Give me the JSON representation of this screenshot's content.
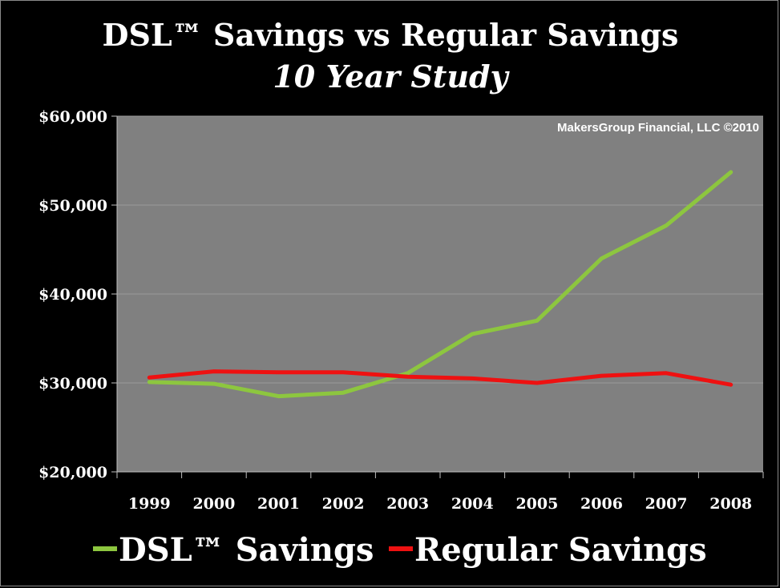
{
  "chart_data": {
    "type": "line",
    "title": "DSL™ Savings vs Regular Savings",
    "subtitle": "10 Year Study",
    "annotation": "MakersGroup Financial, LLC ©2010",
    "categories": [
      "1999",
      "2000",
      "2001",
      "2002",
      "2003",
      "2004",
      "2005",
      "2006",
      "2007",
      "2008"
    ],
    "series": [
      {
        "name": "DSL™ Savings",
        "color": "#8dc63f",
        "values": [
          30100,
          29900,
          28500,
          28900,
          31100,
          35500,
          37000,
          44000,
          47700,
          53700
        ]
      },
      {
        "name": "Regular Savings",
        "color": "#ee1111",
        "values": [
          30600,
          31300,
          31200,
          31200,
          30700,
          30500,
          30000,
          30800,
          31100,
          29800
        ]
      }
    ],
    "ylim": [
      20000,
      60000
    ],
    "yticks": [
      20000,
      30000,
      40000,
      50000,
      60000
    ],
    "ytick_labels": [
      "$20,000",
      "$30,000",
      "$40,000",
      "$50,000",
      "$60,000"
    ],
    "xlabel": "",
    "ylabel": "",
    "grid": true,
    "legend_position": "bottom",
    "plot_background": "#808080"
  }
}
